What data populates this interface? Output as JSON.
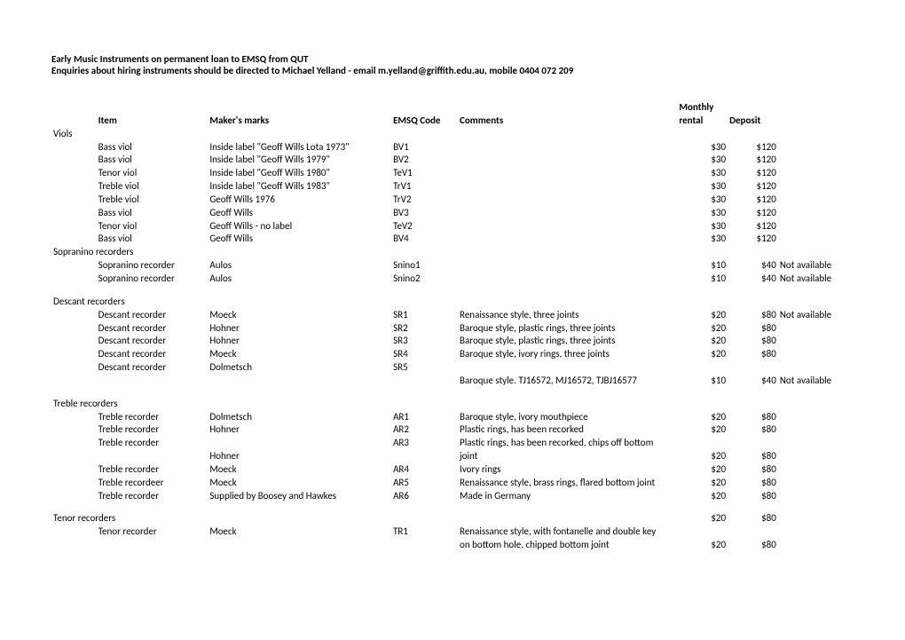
{
  "header": {
    "line1": "Early Music Instruments on permanent loan to EMSQ from QUT",
    "line2": "Enquiries about hiring instruments should be directed to Michael Yelland  - email m.yelland@griffith.edu.au, mobile 0404 072 209"
  },
  "column_headers": {
    "item": "Item",
    "maker": "Maker's marks",
    "code": "EMSQ Code",
    "comments": "Comments",
    "rental_l1": "Monthly",
    "rental_l2": "rental",
    "deposit": "Deposit"
  },
  "sections": [
    {
      "category": "Viols",
      "rows": [
        {
          "item": "Bass viol",
          "maker": "Inside label \"Geoff Wills Lota 1973\"",
          "code": "BV1",
          "comments": "",
          "rent": "$30",
          "dep": "$120",
          "note": ""
        },
        {
          "item": "Bass viol",
          "maker": "Inside label \"Geoff Wills 1979\"",
          "code": "BV2",
          "comments": "",
          "rent": "$30",
          "dep": "$120",
          "note": ""
        },
        {
          "item": " Tenor viol",
          "maker": "Inside label \"Geoff Wills 1980\"",
          "code": "TeV1",
          "comments": "",
          "rent": "$30",
          "dep": "$120",
          "note": ""
        },
        {
          "item": " Treble viol",
          "maker": "Inside label \"Geoff Wills 1983\"",
          "code": "TrV1",
          "comments": "",
          "rent": "$30",
          "dep": "$120",
          "note": ""
        },
        {
          "item": "Treble viol",
          "maker": "Geoff Wills 1976",
          "code": "TrV2",
          "comments": "",
          "rent": "$30",
          "dep": "$120",
          "note": ""
        },
        {
          "item": "Bass viol",
          "maker": "Geoff Wills",
          "code": "BV3",
          "comments": "",
          "rent": "$30",
          "dep": "$120",
          "note": ""
        },
        {
          "item": "Tenor viol",
          "maker": "Geoff Wills - no label",
          "code": "TeV2",
          "comments": "",
          "rent": "$30",
          "dep": "$120",
          "note": ""
        },
        {
          "item": "Bass viol",
          "maker": "Geoff Wills",
          "code": "BV4",
          "comments": "",
          "rent": "$30",
          "dep": "$120",
          "note": ""
        }
      ]
    },
    {
      "category": "Sopranino recorders",
      "rows": [
        {
          "item": "Sopranino recorder",
          "maker": "Aulos",
          "code": "Snino1",
          "comments": "",
          "rent": "$10",
          "dep": "$40",
          "note": "Not available"
        },
        {
          "item": "Sopranino recorder",
          "maker": "Aulos",
          "code": "Snino2",
          "comments": "",
          "rent": "$10",
          "dep": "$40",
          "note": "Not available"
        }
      ],
      "trailing_space": true
    },
    {
      "category": "Descant recorders",
      "rows": [
        {
          "item": "Descant recorder",
          "maker": "Moeck",
          "code": "SR1",
          "comments": "Renaissance style, three joints",
          "rent": "$20",
          "dep": "$80",
          "note": "Not available"
        },
        {
          "item": "Descant recorder",
          "maker": "Hohner",
          "code": "SR2",
          "comments": "Baroque style, plastic rings, three joints",
          "rent": "$20",
          "dep": "$80",
          "note": ""
        },
        {
          "item": "Descant recorder",
          "maker": "Hohner",
          "code": "SR3",
          "comments": "Baroque style, plastic rings, three joints",
          "rent": "$20",
          "dep": "$80",
          "note": ""
        },
        {
          "item": "Descant recorder",
          "maker": "Moeck",
          "code": "SR4",
          "comments": "Baroque style, ivory rings, three joints",
          "rent": "$20",
          "dep": "$80",
          "note": ""
        },
        {
          "item": "Descant recorder",
          "maker": "Dolmetsch",
          "code": "SR5",
          "comments": "",
          "rent": "",
          "dep": "",
          "note": ""
        },
        {
          "item": "",
          "maker": "",
          "code": "",
          "comments": "Baroque style. TJ16572, MJ16572, TJBJ16577",
          "rent": "$10",
          "dep": "$40",
          "note": "Not available"
        }
      ],
      "trailing_space": true
    },
    {
      "category": "Treble recorders",
      "rows": [
        {
          "item": "Treble recorder",
          "maker": "Dolmetsch",
          "code": "AR1",
          "comments": "Baroque style, ivory mouthpiece",
          "rent": "$20",
          "dep": "$80",
          "note": ""
        },
        {
          "item": "Treble recorder",
          "maker": "Hohner",
          "code": "AR2",
          "comments": "Plastic rings, has been recorked",
          "rent": "$20",
          "dep": "$80",
          "note": ""
        },
        {
          "item": "Treble recorder",
          "maker": "",
          "code": "AR3",
          "comments": "Plastic rings, has been recorked, chips off bottom",
          "rent": "",
          "dep": "",
          "note": ""
        },
        {
          "item": "",
          "maker": "Hohner",
          "code": "",
          "comments": "joint",
          "rent": "$20",
          "dep": "$80",
          "note": ""
        },
        {
          "item": "Treble recorder",
          "maker": "Moeck",
          "code": "AR4",
          "comments": "Ivory rings",
          "rent": "$20",
          "dep": "$80",
          "note": ""
        },
        {
          "item": "Treble recordeer",
          "maker": "Moeck",
          "code": "AR5",
          "comments": "Renaissance style, brass rings, flared bottom joint",
          "rent": "$20",
          "dep": "$80",
          "note": ""
        },
        {
          "item": "Treble recorder",
          "maker": "Supplied by Boosey and Hawkes",
          "code": "AR6",
          "comments": "Made in Germany",
          "rent": "$20",
          "dep": "$80",
          "note": ""
        }
      ],
      "trailing_space": true
    },
    {
      "category": "Tenor recorders",
      "category_rent": "$20",
      "category_dep": "$80",
      "rows": [
        {
          "item": "Tenor recorder",
          "maker": "Moeck",
          "code": "TR1",
          "comments": "Renaissance style, with fontanelle and double key",
          "rent": "",
          "dep": "",
          "note": ""
        },
        {
          "item": "",
          "maker": "",
          "code": "",
          "comments": "on bottom hole, chipped bottom joint",
          "rent": "$20",
          "dep": "$80",
          "note": ""
        }
      ]
    }
  ]
}
